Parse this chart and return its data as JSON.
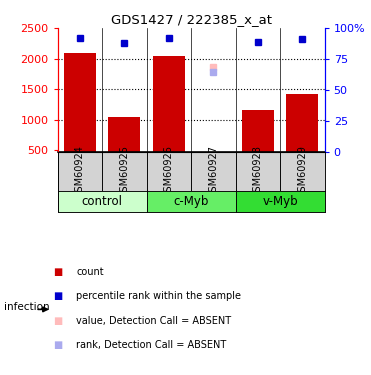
{
  "title": "GDS1427 / 222385_x_at",
  "samples": [
    "GSM60924",
    "GSM60925",
    "GSM60926",
    "GSM60927",
    "GSM60928",
    "GSM60929"
  ],
  "group_configs": [
    {
      "name": "control",
      "start": 0,
      "end": 2,
      "color": "#ccffcc"
    },
    {
      "name": "c-Myb",
      "start": 2,
      "end": 4,
      "color": "#66ee66"
    },
    {
      "name": "v-Myb",
      "start": 4,
      "end": 6,
      "color": "#33dd33"
    }
  ],
  "bar_values": [
    2090,
    1040,
    2040,
    470,
    1160,
    1415
  ],
  "rank_values": [
    2335,
    2250,
    2340,
    null,
    2275,
    2325
  ],
  "absent_value": [
    null,
    null,
    null,
    1860,
    null,
    null
  ],
  "absent_rank": [
    null,
    null,
    null,
    1860,
    null,
    null
  ],
  "ylim_left": [
    470,
    2500
  ],
  "ylim_right": [
    0,
    100
  ],
  "bar_color": "#cc0000",
  "rank_color": "#0000cc",
  "absent_value_color": "#ffbbbb",
  "absent_rank_color": "#aaaaee",
  "yticks_left": [
    500,
    1000,
    1500,
    2000,
    2500
  ],
  "yticks_right": [
    0,
    25,
    50,
    75,
    100
  ],
  "grid_lines": [
    1000,
    1500,
    2000
  ],
  "sample_bg_color": "#d3d3d3",
  "legend_labels": [
    "count",
    "percentile rank within the sample",
    "value, Detection Call = ABSENT",
    "rank, Detection Call = ABSENT"
  ],
  "legend_colors": [
    "#cc0000",
    "#0000cc",
    "#ffbbbb",
    "#aaaaee"
  ],
  "infection_label": "infection"
}
